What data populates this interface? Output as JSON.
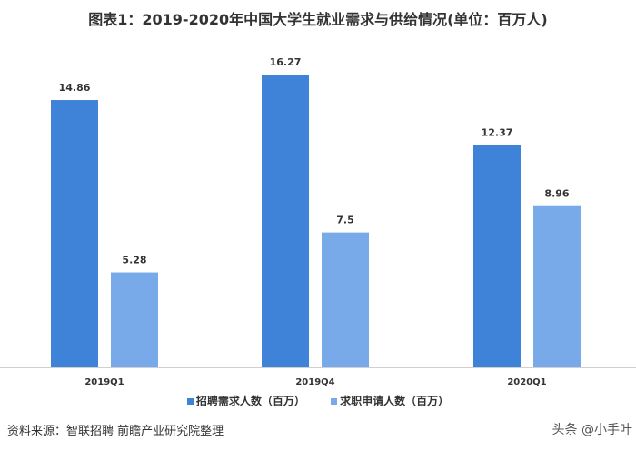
{
  "title": "图表1：2019-2020年中国大学生就业需求与供给情况(单位：百万人)",
  "source": "资料来源：智联招聘 前瞻产业研究院整理",
  "watermark": "头条 @小手叶",
  "chart_data": {
    "type": "bar",
    "title": "图表1：2019-2020年中国大学生就业需求与供给情况(单位：百万人)",
    "categories": [
      "2019Q1",
      "2019Q4",
      "2020Q1"
    ],
    "series": [
      {
        "name": "招聘需求人数（百万）",
        "values": [
          14.86,
          16.27,
          12.37
        ],
        "color": "#3f83d8"
      },
      {
        "name": "求职申请人数（百万）",
        "values": [
          5.28,
          7.5,
          8.96
        ],
        "color": "#78a9e8"
      }
    ],
    "data_labels": [
      [
        "14.86",
        "16.27",
        "12.37"
      ],
      [
        "5.28",
        "7.5",
        "8.96"
      ]
    ],
    "ylim": [
      0,
      18.4
    ],
    "grid": false,
    "legend": "bottom"
  }
}
